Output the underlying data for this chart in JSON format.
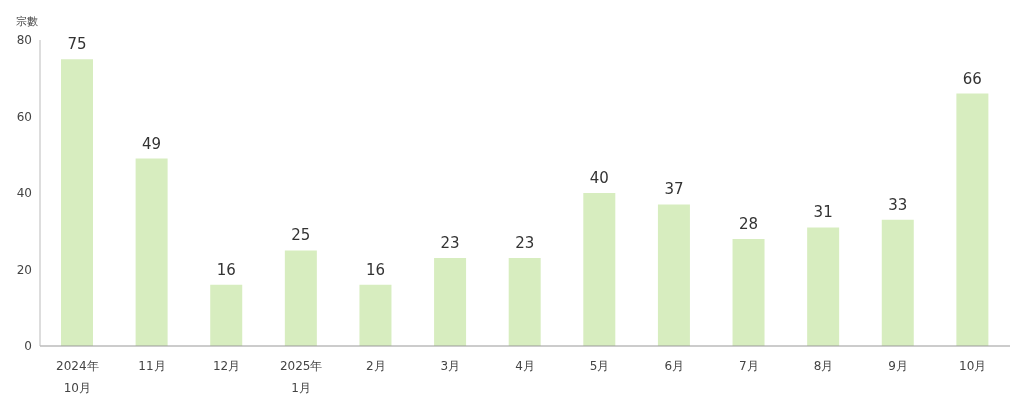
{
  "chart_data": {
    "type": "bar",
    "ylabel": "宗數",
    "categories": [
      "2024年\n10月",
      "11月",
      "12月",
      "2025年\n1月",
      "2月",
      "3月",
      "4月",
      "5月",
      "6月",
      "7月",
      "8月",
      "9月",
      "10月"
    ],
    "values": [
      75,
      49,
      16,
      25,
      16,
      23,
      23,
      40,
      37,
      28,
      31,
      33,
      66
    ],
    "color": "#d7edbf",
    "ylim": [
      0,
      80
    ],
    "yticks": [
      0,
      20,
      40,
      60,
      80
    ],
    "grid": false,
    "data_labels": true
  }
}
